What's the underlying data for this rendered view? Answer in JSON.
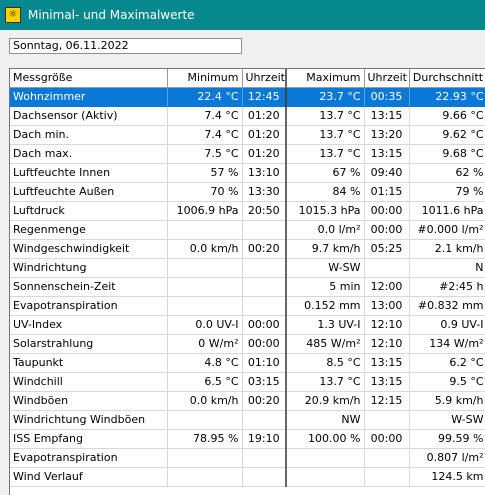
{
  "window": {
    "title": "Minimal- und Maximalwerte",
    "icon": "app-icon"
  },
  "date_field": {
    "value": "Sonntag, 06.11.2022"
  },
  "table": {
    "headers": [
      "Messgröße",
      "Minimum",
      "Uhrzeit",
      "Maximum",
      "Uhrzeit",
      "Durchschnitt"
    ],
    "selected_row": 0,
    "rows": [
      [
        "Wohnzimmer",
        "22.4 °C",
        "12:45",
        "23.7 °C",
        "00:35",
        "22.93 °C"
      ],
      [
        "Dachsensor (Aktiv)",
        "7.4 °C",
        "01:20",
        "13.7 °C",
        "13:15",
        "9.66 °C"
      ],
      [
        "Dach min.",
        "7.4 °C",
        "01:20",
        "13.7 °C",
        "13:20",
        "9.62 °C"
      ],
      [
        "Dach max.",
        "7.5 °C",
        "01:20",
        "13.7 °C",
        "13:15",
        "9.68 °C"
      ],
      [
        "Luftfeuchte Innen",
        "57 %",
        "13:10",
        "67 %",
        "09:40",
        "62 %"
      ],
      [
        "Luftfeuchte Außen",
        "70 %",
        "13:30",
        "84 %",
        "01:15",
        "79 %"
      ],
      [
        "Luftdruck",
        "1006.9 hPa",
        "20:50",
        "1015.3 hPa",
        "00:00",
        "1011.6 hPa"
      ],
      [
        "Regenmenge",
        "",
        "",
        "0.0 l/m²",
        "00:00",
        "#0.000 l/m²"
      ],
      [
        "Windgeschwindigkeit",
        "0.0 km/h",
        "00:20",
        "9.7 km/h",
        "05:25",
        "2.1 km/h"
      ],
      [
        "Windrichtung",
        "",
        "",
        "W-SW",
        "",
        "N"
      ],
      [
        "Sonnenschein-Zeit",
        "",
        "",
        "5 min",
        "12:00",
        "#2:45 h"
      ],
      [
        "Evapotranspiration",
        "",
        "",
        "0.152 mm",
        "13:00",
        "#0.832 mm"
      ],
      [
        "UV-Index",
        "0.0 UV-I",
        "00:00",
        "1.3 UV-I",
        "12:10",
        "0.9 UV-I"
      ],
      [
        "Solarstrahlung",
        "0 W/m²",
        "00:00",
        "485 W/m²",
        "12:10",
        "134 W/m²"
      ],
      [
        "Taupunkt",
        "4.8 °C",
        "01:10",
        "8.5 °C",
        "13:15",
        "6.2 °C"
      ],
      [
        "Windchill",
        "6.5 °C",
        "03:15",
        "13.7 °C",
        "13:15",
        "9.5 °C"
      ],
      [
        "Windböen",
        "0.0 km/h",
        "00:20",
        "20.9 km/h",
        "12:15",
        "5.9 km/h"
      ],
      [
        "Windrichtung Windböen",
        "",
        "",
        "NW",
        "",
        "W-SW"
      ],
      [
        "ISS Empfang",
        "78.95 %",
        "19:10",
        "100.00 %",
        "00:00",
        "99.59 %"
      ],
      [
        "Evapotranspiration",
        "",
        "",
        "",
        "",
        "0.807 l/m²"
      ],
      [
        "Wind Verlauf",
        "",
        "",
        "",
        "",
        "124.5 km"
      ]
    ]
  },
  "colors": {
    "titlebar": "#07888c",
    "selection": "#0a78d7"
  }
}
